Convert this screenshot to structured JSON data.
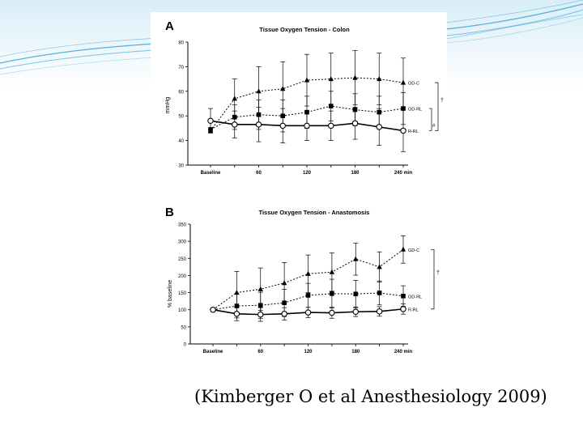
{
  "caption": "(Kimberger O et al Anesthesiology 2009)",
  "theme": {
    "band_color": "#d9eef8",
    "wave_color": "#2a9fd0"
  },
  "chart_data": [
    {
      "type": "line",
      "panel_letter": "A",
      "title": "Tissue Oxygen Tension - Colon",
      "xlabel": "",
      "ylabel": "mmHg",
      "categories": [
        "Baseline",
        "",
        "60",
        "",
        "120",
        "",
        "180",
        "",
        "240 min"
      ],
      "x": [
        0,
        30,
        60,
        90,
        120,
        150,
        180,
        210,
        240
      ],
      "ylim": [
        30,
        80
      ],
      "yticks": [
        30,
        40,
        50,
        60,
        70,
        80
      ],
      "xticks": [
        {
          "x": 0,
          "label": "Baseline"
        },
        {
          "x": 60,
          "label": "60"
        },
        {
          "x": 120,
          "label": "120"
        },
        {
          "x": 180,
          "label": "180"
        },
        {
          "x": 240,
          "label": "240 min"
        }
      ],
      "series": [
        {
          "name": "GD-C",
          "marker": "triangle",
          "values": [
            44,
            57,
            60,
            61,
            64.5,
            65,
            65.5,
            65,
            63.5
          ],
          "err": [
            0,
            8,
            10,
            11,
            10.5,
            10.5,
            11,
            10.5,
            10
          ]
        },
        {
          "name": "GD-RL",
          "marker": "square",
          "values": [
            44.5,
            49.5,
            50.5,
            50,
            51.5,
            54,
            52.5,
            51.5,
            53
          ],
          "err": [
            0,
            5,
            6,
            6.5,
            6.5,
            6,
            6.5,
            6.5,
            6.5
          ]
        },
        {
          "name": "R-RL",
          "marker": "circle",
          "values": [
            48,
            46.5,
            46.5,
            46,
            46,
            46,
            47,
            45.5,
            44
          ],
          "err": [
            5,
            5.5,
            7,
            7,
            6,
            6,
            6.5,
            7.5,
            8.5
          ]
        }
      ],
      "annotations": [
        "†",
        "#"
      ]
    },
    {
      "type": "line",
      "panel_letter": "B",
      "title": "Tissue Oxygen Tension - Anastomosis",
      "xlabel": "",
      "ylabel": "% baseline",
      "categories": [
        "Baseline",
        "",
        "60",
        "",
        "120",
        "",
        "180",
        "",
        "240 min"
      ],
      "x": [
        0,
        30,
        60,
        90,
        120,
        150,
        180,
        210,
        240
      ],
      "ylim": [
        0,
        350
      ],
      "yticks": [
        0,
        50,
        100,
        150,
        200,
        250,
        300,
        350
      ],
      "xticks": [
        {
          "x": 0,
          "label": "Baseline"
        },
        {
          "x": 60,
          "label": "60"
        },
        {
          "x": 120,
          "label": "120"
        },
        {
          "x": 180,
          "label": "180"
        },
        {
          "x": 240,
          "label": "240 min"
        }
      ],
      "series": [
        {
          "name": "GD-C",
          "marker": "triangle",
          "values": [
            100,
            150,
            160,
            178,
            205,
            210,
            248,
            225,
            276
          ],
          "err": [
            0,
            62,
            62,
            60,
            55,
            56,
            47,
            44,
            40
          ]
        },
        {
          "name": "GD-RL",
          "marker": "square",
          "values": [
            100,
            111,
            113,
            120,
            142,
            147,
            146,
            149,
            140
          ],
          "err": [
            0,
            35,
            38,
            40,
            35,
            42,
            40,
            35,
            30
          ]
        },
        {
          "name": "R-RL",
          "marker": "circle",
          "values": [
            100,
            88,
            86,
            88,
            92,
            91,
            94,
            95,
            102
          ],
          "err": [
            0,
            20,
            20,
            18,
            15,
            16,
            14,
            14,
            15
          ]
        }
      ],
      "annotations": [
        "†"
      ]
    }
  ]
}
